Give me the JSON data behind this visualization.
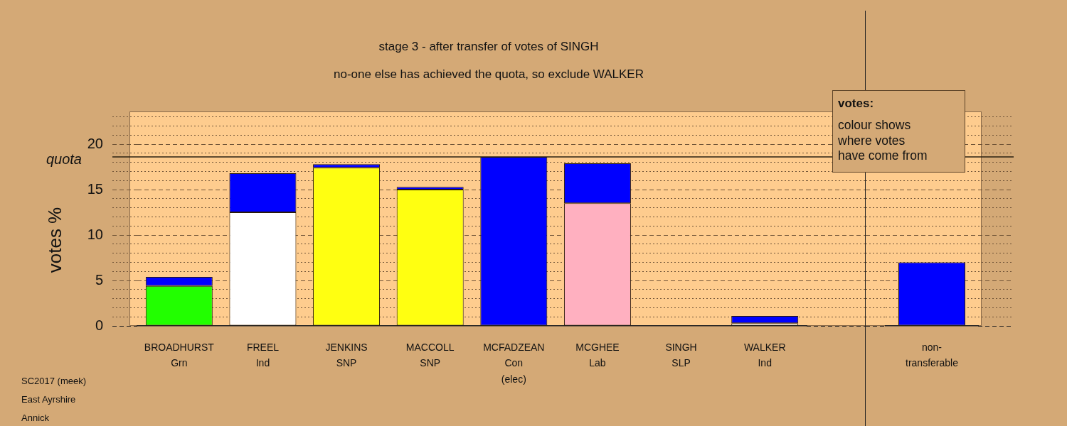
{
  "chart_data": [
    {
      "type": "bar",
      "title": "stage 3 - after transfer of votes of SINGH",
      "subtitle": "no-one else has achieved the quota, so exclude WALKER",
      "ylabel": "votes %",
      "categories": [
        "BROADHURST\nGrn",
        "FREEL\nInd",
        "JENKINS\nSNP",
        "MACCOLL\nSNP",
        "MCFADZEAN\nCon\n(elec)",
        "MCGHEE\nLab",
        "SINGH\nSLP",
        "WALKER\nInd"
      ],
      "stacked": true,
      "series": [
        {
          "colors": [
            "#22ff00",
            "#ffffff",
            "#ffff11",
            "#ffff11",
            "#0000ff",
            "#ffb0c0",
            null,
            "#ffffff"
          ],
          "values": [
            4.4,
            12.5,
            17.4,
            15.0,
            18.6,
            13.5,
            null,
            0.3
          ]
        },
        {
          "color": "#0000ff",
          "values": [
            1.0,
            4.3,
            0.4,
            0.3,
            null,
            4.4,
            0,
            0.8
          ]
        }
      ],
      "ylim": [
        0,
        23.6
      ],
      "yticks": [
        0,
        {
          "value": 1,
          "label": null
        },
        {
          "value": 2,
          "label": null
        },
        {
          "value": 3,
          "label": null
        },
        {
          "value": 4,
          "label": null
        },
        5,
        {
          "value": 6,
          "label": null
        },
        {
          "value": 7,
          "label": null
        },
        {
          "value": 8,
          "label": null
        },
        {
          "value": 9,
          "label": null
        },
        10,
        {
          "value": 11,
          "label": null
        },
        {
          "value": 12,
          "label": null
        },
        {
          "value": 13,
          "label": null
        },
        {
          "value": 14,
          "label": null
        },
        15,
        {
          "value": 16,
          "label": null
        },
        {
          "value": 17,
          "label": null
        },
        {
          "value": 18,
          "label": null
        },
        {
          "value": 19,
          "label": null
        },
        20,
        {
          "value": 21,
          "label": null
        },
        {
          "value": 22,
          "label": null
        },
        {
          "value": 23,
          "label": null
        }
      ],
      "grid": "y",
      "ref_lines": [
        {
          "axis": "y",
          "value": 18.6,
          "label": "quota"
        }
      ],
      "annotations": [
        "votes:",
        "colour shows\nwhere votes\nhave come from",
        "SC2017 (meek)",
        "East Ayrshire",
        "Annick"
      ]
    },
    {
      "type": "bar",
      "categories": [
        "non-\ntransferable"
      ],
      "series": [
        {
          "color": "#0000ff",
          "values": [
            7.0
          ]
        }
      ],
      "ylim": [
        0,
        23.6
      ],
      "yticks": [
        0,
        {
          "value": 1,
          "label": null
        },
        {
          "value": 2,
          "label": null
        },
        {
          "value": 3,
          "label": null
        },
        {
          "value": 4,
          "label": null
        },
        5,
        {
          "value": 6,
          "label": null
        },
        {
          "value": 7,
          "label": null
        },
        {
          "value": 8,
          "label": null
        },
        {
          "value": 9,
          "label": null
        },
        10,
        {
          "value": 11,
          "label": null
        },
        {
          "value": 12,
          "label": null
        },
        {
          "value": 13,
          "label": null
        },
        {
          "value": 14,
          "label": null
        },
        15,
        {
          "value": 16,
          "label": null
        },
        {
          "value": 17,
          "label": null
        },
        {
          "value": 18,
          "label": null
        },
        {
          "value": 19,
          "label": null
        },
        20,
        {
          "value": 21,
          "label": null
        },
        {
          "value": 22,
          "label": null
        },
        {
          "value": 23,
          "label": null
        }
      ],
      "grid": "y",
      "ref_lines": [
        {
          "axis": "y",
          "value": 18.6
        }
      ],
      "tick_labels": "x"
    }
  ]
}
